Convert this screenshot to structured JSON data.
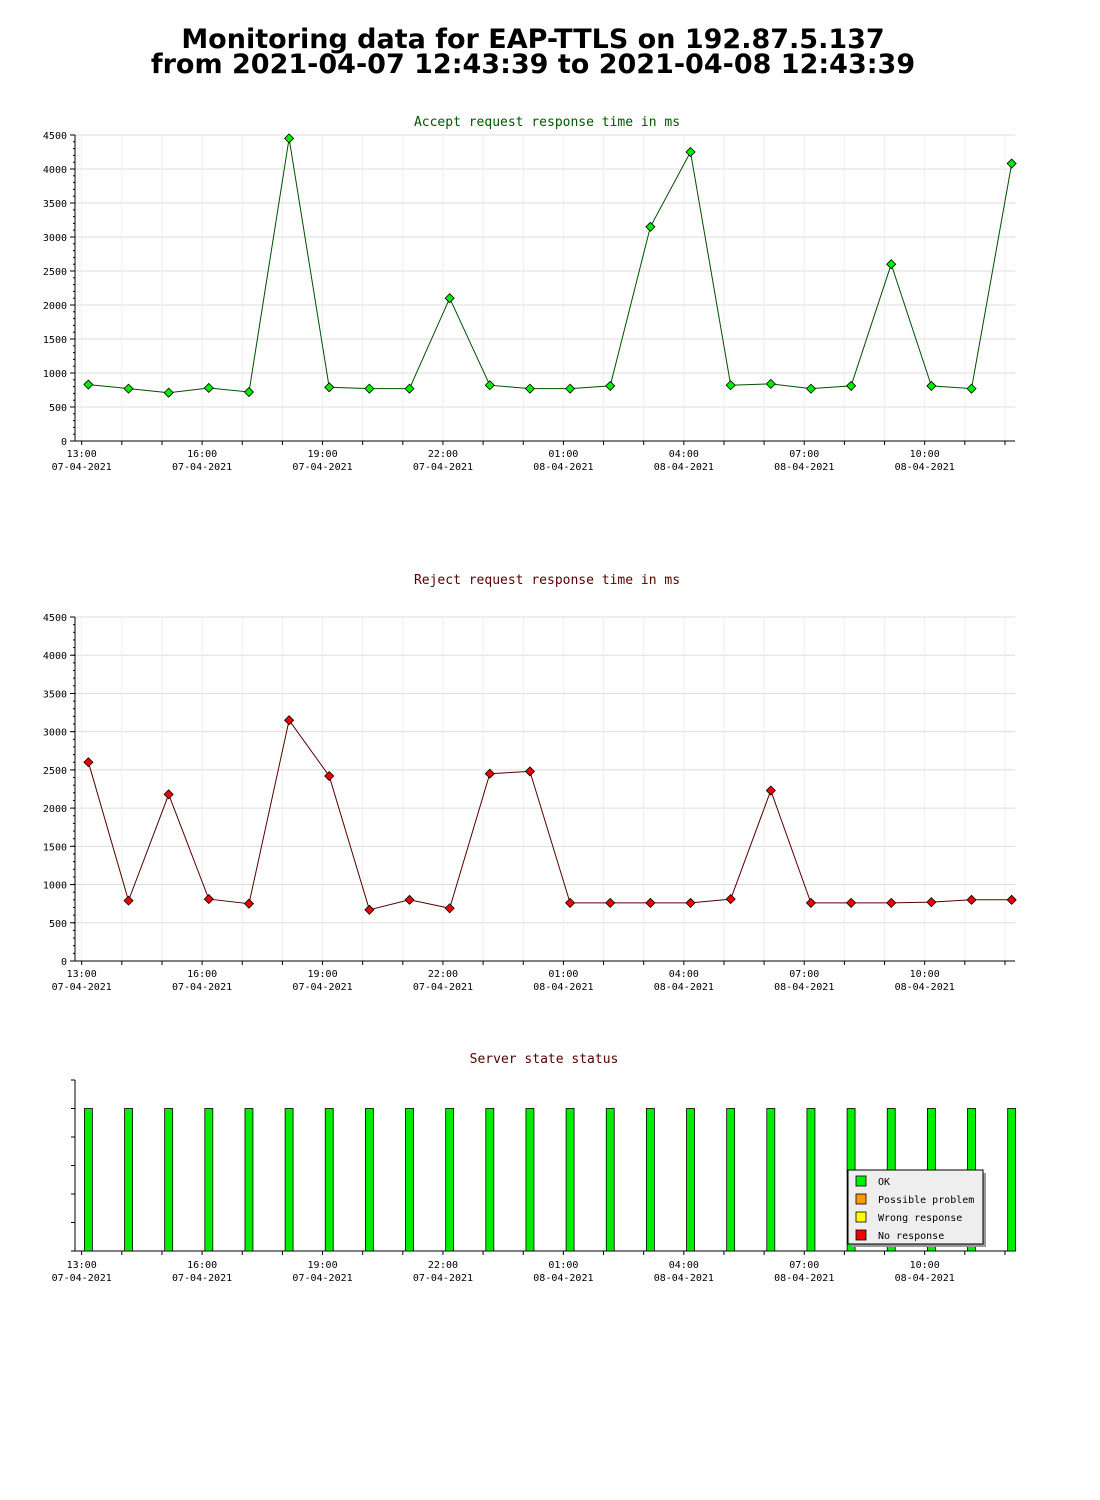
{
  "page": {
    "title_line1": "Monitoring data for EAP-TTLS on 192.87.5.137",
    "title_line2": "from 2021-04-07 12:43:39 to 2021-04-08 12:43:39"
  },
  "colors": {
    "accept_line": "#004d00",
    "accept_marker": "#00ee00",
    "reject_line": "#550000",
    "reject_marker": "#ee0000",
    "title_accept": "#005500",
    "title_reject": "#550000",
    "grid": "#dddddd",
    "ok": "#00ee00",
    "possible_problem": "#ff9900",
    "wrong_response": "#ffff00",
    "no_response": "#ee0000"
  },
  "x_ticks": [
    {
      "time": "13:00",
      "date": "07-04-2021"
    },
    {
      "time": "16:00",
      "date": "07-04-2021"
    },
    {
      "time": "19:00",
      "date": "07-04-2021"
    },
    {
      "time": "22:00",
      "date": "07-04-2021"
    },
    {
      "time": "01:00",
      "date": "08-04-2021"
    },
    {
      "time": "04:00",
      "date": "08-04-2021"
    },
    {
      "time": "07:00",
      "date": "08-04-2021"
    },
    {
      "time": "10:00",
      "date": "08-04-2021"
    }
  ],
  "chart_data": [
    {
      "type": "line",
      "title": "Accept request response time in ms",
      "xlabel": "",
      "ylabel": "",
      "ylim": [
        0,
        4500
      ],
      "xlim": [
        "2021-04-07 12:50",
        "2021-04-08 12:15"
      ],
      "yticks": [
        0,
        500,
        1000,
        1500,
        2000,
        2500,
        3000,
        3500,
        4000,
        4500
      ],
      "grid": true,
      "x": [
        "2021-04-07 13:10",
        "2021-04-07 14:10",
        "2021-04-07 15:10",
        "2021-04-07 16:10",
        "2021-04-07 17:10",
        "2021-04-07 18:10",
        "2021-04-07 19:10",
        "2021-04-07 20:10",
        "2021-04-07 21:10",
        "2021-04-07 22:10",
        "2021-04-07 23:10",
        "2021-04-08 00:10",
        "2021-04-08 01:10",
        "2021-04-08 02:10",
        "2021-04-08 03:10",
        "2021-04-08 04:10",
        "2021-04-08 05:10",
        "2021-04-08 06:10",
        "2021-04-08 07:10",
        "2021-04-08 08:10",
        "2021-04-08 09:10",
        "2021-04-08 10:10",
        "2021-04-08 11:10",
        "2021-04-08 12:10"
      ],
      "values": [
        830,
        770,
        710,
        780,
        720,
        4450,
        790,
        770,
        770,
        2100,
        820,
        770,
        770,
        810,
        3150,
        4250,
        820,
        840,
        770,
        810,
        2600,
        810,
        770,
        4080
      ]
    },
    {
      "type": "line",
      "title": "Reject request response time in ms",
      "xlabel": "",
      "ylabel": "",
      "ylim": [
        0,
        4500
      ],
      "xlim": [
        "2021-04-07 12:50",
        "2021-04-08 12:15"
      ],
      "yticks": [
        0,
        500,
        1000,
        1500,
        2000,
        2500,
        3000,
        3500,
        4000,
        4500
      ],
      "grid": true,
      "x": [
        "2021-04-07 13:10",
        "2021-04-07 14:10",
        "2021-04-07 15:10",
        "2021-04-07 16:10",
        "2021-04-07 17:10",
        "2021-04-07 18:10",
        "2021-04-07 19:10",
        "2021-04-07 20:10",
        "2021-04-07 21:10",
        "2021-04-07 22:10",
        "2021-04-07 23:10",
        "2021-04-08 00:10",
        "2021-04-08 01:10",
        "2021-04-08 02:10",
        "2021-04-08 03:10",
        "2021-04-08 04:10",
        "2021-04-08 05:10",
        "2021-04-08 06:10",
        "2021-04-08 07:10",
        "2021-04-08 08:10",
        "2021-04-08 09:10",
        "2021-04-08 10:10",
        "2021-04-08 11:10",
        "2021-04-08 12:10"
      ],
      "values": [
        2600,
        790,
        2180,
        810,
        750,
        3150,
        2420,
        670,
        800,
        690,
        2450,
        2480,
        760,
        760,
        760,
        760,
        810,
        2230,
        760,
        760,
        760,
        770,
        800,
        800
      ]
    },
    {
      "type": "bar",
      "title": "Server state status",
      "xlim": [
        "2021-04-07 12:50",
        "2021-04-08 12:15"
      ],
      "x": [
        "2021-04-07 13:10",
        "2021-04-07 14:10",
        "2021-04-07 15:10",
        "2021-04-07 16:10",
        "2021-04-07 17:10",
        "2021-04-07 18:10",
        "2021-04-07 19:10",
        "2021-04-07 20:10",
        "2021-04-07 21:10",
        "2021-04-07 22:10",
        "2021-04-07 23:10",
        "2021-04-08 00:10",
        "2021-04-08 01:10",
        "2021-04-08 02:10",
        "2021-04-08 03:10",
        "2021-04-08 04:10",
        "2021-04-08 05:10",
        "2021-04-08 06:10",
        "2021-04-08 07:10",
        "2021-04-08 08:10",
        "2021-04-08 09:10",
        "2021-04-08 10:10",
        "2021-04-08 11:10",
        "2021-04-08 12:10"
      ],
      "states": [
        "OK",
        "OK",
        "OK",
        "OK",
        "OK",
        "OK",
        "OK",
        "OK",
        "OK",
        "OK",
        "OK",
        "OK",
        "OK",
        "OK",
        "OK",
        "OK",
        "OK",
        "OK",
        "OK",
        "OK",
        "OK",
        "OK",
        "OK",
        "OK"
      ],
      "legend": [
        {
          "label": "OK",
          "color": "#00ee00"
        },
        {
          "label": "Possible problem",
          "color": "#ff9900"
        },
        {
          "label": "Wrong response",
          "color": "#ffff00"
        },
        {
          "label": "No response",
          "color": "#ee0000"
        }
      ],
      "legend_position": "bottom-right"
    }
  ]
}
